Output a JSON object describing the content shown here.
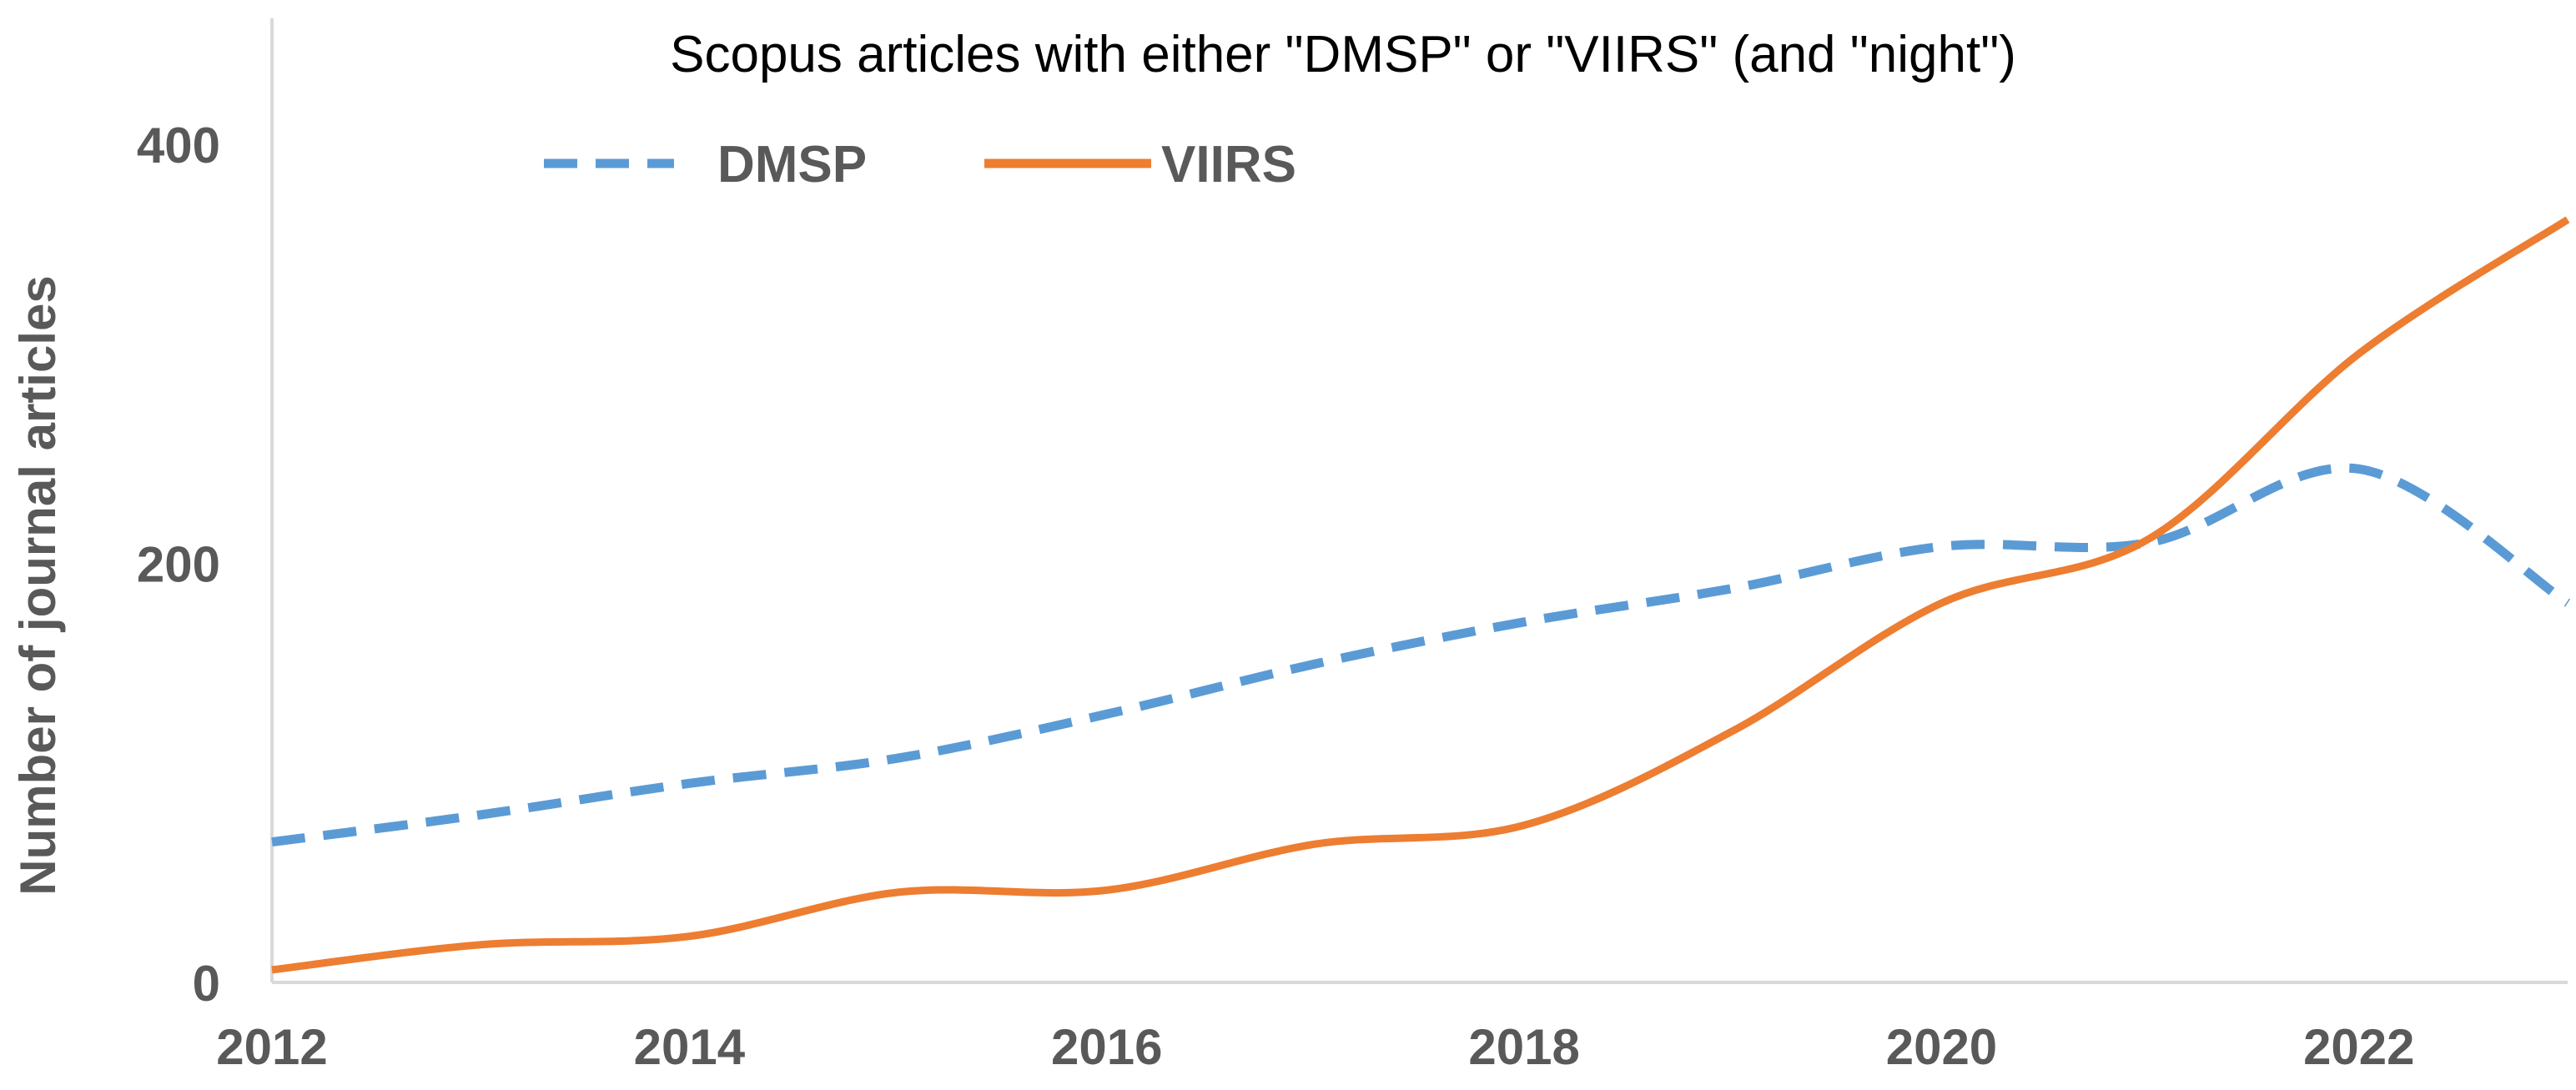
{
  "chart_data": {
    "type": "line",
    "title": "Scopus articles with either \"DMSP\" or \"VIIRS\" (and \"night\")",
    "xlabel": "",
    "ylabel": "Number of journal articles",
    "x": [
      2012,
      2013,
      2014,
      2015,
      2016,
      2017,
      2018,
      2019,
      2020,
      2021,
      2022,
      2023
    ],
    "xticks": [
      "2012",
      "2014",
      "2016",
      "2018",
      "2020",
      "2022"
    ],
    "yticks": [
      "0",
      "200",
      "400"
    ],
    "xlim": [
      2012,
      2023
    ],
    "ylim": [
      0,
      460
    ],
    "grid": false,
    "legend_position": "top-left",
    "series": [
      {
        "name": "DMSP",
        "style": "dashed",
        "color": "#5b9bd5",
        "values": [
          67,
          80,
          95,
          107,
          128,
          152,
          172,
          188,
          208,
          210,
          245,
          181
        ]
      },
      {
        "name": "VIIRS",
        "style": "solid",
        "color": "#ed7d31",
        "values": [
          6,
          18,
          22,
          43,
          44,
          66,
          75,
          120,
          181,
          212,
          300,
          364
        ]
      }
    ]
  }
}
